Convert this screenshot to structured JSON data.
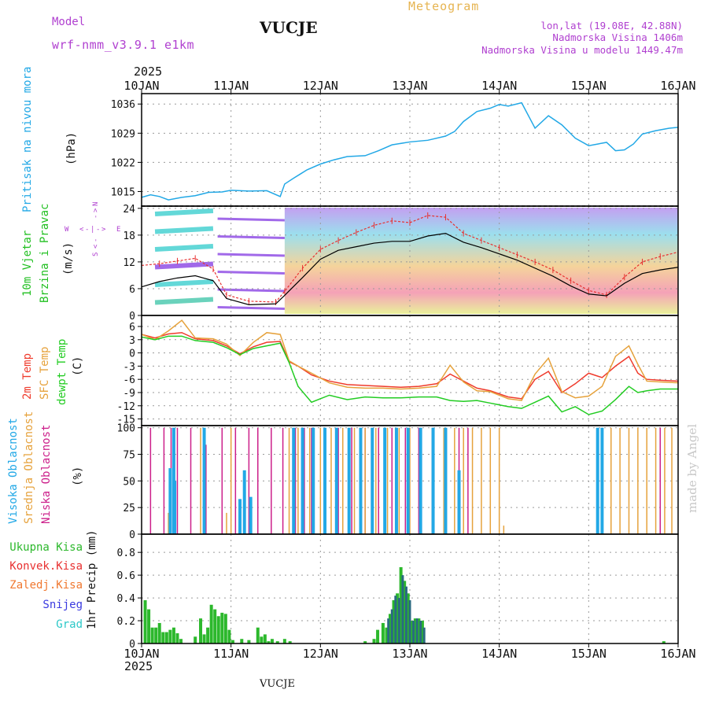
{
  "header": {
    "model_label": "Model",
    "model_name": "wrf-nmm_v3.9.1  e1km",
    "station": "VUCJE",
    "chart_title": "Meteogram",
    "coords": "lon,lat (19.08E, 42.88N)",
    "elevation": "Nadmorska Visina 1406m",
    "model_elevation": "Nadmorska Visina u modelu 1449.47m",
    "year_top": "2025",
    "year_bottom": "2025",
    "footer_station": "VUCJE",
    "watermark": "made by Angel"
  },
  "colors": {
    "pressure": "#22a8e6",
    "wind_label": "#22c022",
    "wind_speed_line": "#000000",
    "gust": "#e83030",
    "temp_2m": "#ef3b2c",
    "temp_sfc": "#e6a23c",
    "temp_dew": "#22cc22",
    "cloud_high": "#22a8e6",
    "cloud_mid": "#e6a23c",
    "cloud_low": "#cc1f8a",
    "precip_total": "#2cb82c",
    "precip_conv": "#e83030",
    "precip_frozen": "#f07830",
    "snow": "#3a3ae0",
    "hail": "#2cc8c8",
    "direction_axis": "#b040d0",
    "header_purple": "#b040d0",
    "title_gold": "#e6b450"
  },
  "chart_data": [
    {
      "id": "pressure",
      "type": "line",
      "ylabel": "(hPa)",
      "side_labels": [
        "Pritisak na nivou mora"
      ],
      "y_ticks": [
        1015,
        1022,
        1029,
        1036
      ],
      "ylim": [
        1011.5,
        1038.5
      ],
      "x": [
        0,
        0.1,
        0.2,
        0.3,
        0.45,
        0.6,
        0.75,
        0.9,
        1.0,
        1.2,
        1.4,
        1.55,
        1.6,
        1.7,
        1.85,
        2.0,
        2.15,
        2.3,
        2.5,
        2.65,
        2.8,
        3.0,
        3.2,
        3.4,
        3.5,
        3.6,
        3.75,
        3.9,
        4.0,
        4.1,
        4.25,
        4.4,
        4.55,
        4.7,
        4.85,
        5.0,
        5.1,
        5.2,
        5.3,
        5.4,
        5.5,
        5.6,
        5.75,
        5.9,
        6.0
      ],
      "series": [
        {
          "values": [
            1013.6,
            1014.2,
            1013.8,
            1013.0,
            1013.6,
            1014.0,
            1014.8,
            1014.9,
            1015.3,
            1015.1,
            1015.2,
            1013.8,
            1016.8,
            1018.2,
            1020.2,
            1021.6,
            1022.6,
            1023.4,
            1023.6,
            1024.8,
            1026.2,
            1026.9,
            1027.3,
            1028.3,
            1029.4,
            1031.8,
            1034.2,
            1035.0,
            1035.9,
            1035.5,
            1036.3,
            1030.2,
            1033.2,
            1031.0,
            1027.8,
            1026.0,
            1026.4,
            1026.8,
            1024.8,
            1025.0,
            1026.4,
            1028.8,
            1029.6,
            1030.2,
            1030.4
          ]
        }
      ]
    },
    {
      "id": "wind",
      "type": "line",
      "ylabel": "(m/s)",
      "side_labels": [
        "10m Vjetar",
        "Brzina i Pravac"
      ],
      "direction_labels": [
        "W",
        "<",
        "-",
        "|",
        "-",
        ">",
        "E",
        "S",
        "<",
        "-",
        "-",
        ">",
        "N"
      ],
      "y_ticks": [
        0,
        6,
        12,
        18,
        24
      ],
      "ylim": [
        0,
        24.5
      ],
      "x": [
        0,
        0.2,
        0.4,
        0.6,
        0.8,
        0.95,
        1.2,
        1.5,
        1.6,
        1.8,
        2.0,
        2.2,
        2.4,
        2.6,
        2.8,
        3.0,
        3.2,
        3.4,
        3.6,
        3.8,
        4.0,
        4.2,
        4.4,
        4.6,
        4.8,
        5.0,
        5.2,
        5.4,
        5.6,
        5.8,
        6.0
      ],
      "series": [
        {
          "name": "speed",
          "values": [
            6.4,
            7.6,
            8.4,
            8.9,
            7.8,
            3.8,
            2.4,
            2.6,
            4.5,
            8.5,
            12.6,
            14.6,
            15.4,
            16.2,
            16.6,
            16.6,
            17.8,
            18.4,
            16.4,
            15.2,
            13.8,
            12.4,
            10.6,
            8.8,
            6.6,
            4.8,
            4.4,
            7.2,
            9.4,
            10.2,
            10.8
          ]
        },
        {
          "name": "gust",
          "values": [
            11.2,
            11.6,
            12.2,
            12.8,
            10.4,
            4.6,
            3.2,
            3.0,
            5.4,
            10.6,
            14.8,
            16.8,
            18.6,
            20.2,
            21.2,
            20.8,
            22.4,
            22.0,
            18.4,
            16.8,
            15.2,
            13.6,
            12.0,
            10.2,
            7.8,
            5.6,
            4.6,
            8.6,
            12.0,
            13.2,
            14.2
          ]
        }
      ]
    },
    {
      "id": "temperature",
      "type": "line",
      "ylabel": "(C)",
      "side_labels": [
        "2m Temp",
        "SFC Temp",
        "dewpt Temp"
      ],
      "y_ticks": [
        -15,
        -12,
        -9,
        -6,
        -3,
        0,
        3,
        6
      ],
      "ylim": [
        -16.5,
        8.5
      ],
      "x": [
        0,
        0.15,
        0.3,
        0.45,
        0.6,
        0.8,
        0.95,
        1.1,
        1.25,
        1.4,
        1.55,
        1.65,
        1.75,
        1.9,
        2.1,
        2.3,
        2.5,
        2.7,
        2.9,
        3.1,
        3.3,
        3.45,
        3.6,
        3.75,
        3.9,
        4.1,
        4.25,
        4.4,
        4.55,
        4.7,
        4.85,
        5.0,
        5.15,
        5.3,
        5.45,
        5.55,
        5.65,
        5.8,
        6.0
      ],
      "series": [
        {
          "name": "2m Temp",
          "values": [
            4.2,
            3.4,
            4.3,
            4.6,
            3.2,
            2.8,
            1.6,
            -0.2,
            1.4,
            2.4,
            2.6,
            -2.0,
            -3.0,
            -5.0,
            -6.4,
            -7.2,
            -7.4,
            -7.6,
            -7.8,
            -7.6,
            -7.0,
            -4.8,
            -6.4,
            -8.0,
            -8.6,
            -10.0,
            -10.4,
            -6.0,
            -4.2,
            -9.0,
            -7.0,
            -4.6,
            -5.6,
            -3.0,
            -0.8,
            -4.6,
            -6.0,
            -6.2,
            -6.4
          ]
        },
        {
          "name": "SFC Temp",
          "values": [
            4.2,
            3.0,
            5.0,
            7.4,
            3.4,
            3.2,
            2.0,
            -0.6,
            2.4,
            4.6,
            4.2,
            -1.8,
            -3.0,
            -4.6,
            -6.8,
            -7.8,
            -8.0,
            -8.0,
            -8.2,
            -8.0,
            -7.6,
            -2.8,
            -6.6,
            -8.6,
            -8.8,
            -10.4,
            -10.8,
            -4.8,
            -1.2,
            -8.8,
            -10.2,
            -9.8,
            -7.6,
            -0.8,
            1.6,
            -2.6,
            -6.4,
            -6.6,
            -6.8
          ]
        },
        {
          "name": "dewpt Temp",
          "values": [
            3.6,
            3.0,
            3.8,
            3.8,
            2.8,
            2.4,
            1.2,
            -0.4,
            1.0,
            1.6,
            2.2,
            -2.2,
            -7.6,
            -11.2,
            -9.6,
            -10.6,
            -10.0,
            -10.2,
            -10.2,
            -10.0,
            -10.0,
            -10.8,
            -11.0,
            -10.8,
            -11.4,
            -12.2,
            -12.6,
            -11.2,
            -9.8,
            -13.4,
            -12.2,
            -14.0,
            -13.2,
            -10.6,
            -7.6,
            -9.0,
            -8.6,
            -8.2,
            -8.2
          ]
        }
      ]
    },
    {
      "id": "clouds",
      "type": "bar",
      "ylabel": "(%)",
      "side_labels": [
        "Visoka Oblacnost",
        "Srednja Oblacnost",
        "Niska Oblacnost"
      ],
      "y_ticks": [
        0,
        25,
        50,
        75,
        100
      ],
      "ylim": [
        0,
        102
      ],
      "series": [
        {
          "name": "low",
          "x": [
            0.1,
            0.25,
            0.33,
            0.4,
            0.55,
            0.72,
            0.9,
            1.05,
            1.2,
            1.3,
            1.45,
            1.58,
            1.72,
            1.82,
            1.9,
            2.05,
            2.2,
            2.35,
            2.5,
            2.65,
            2.8,
            2.95,
            3.1,
            3.25,
            3.4,
            3.55,
            3.65,
            5.1,
            5.8
          ],
          "values": [
            100,
            100,
            100,
            100,
            100,
            84,
            100,
            100,
            100,
            100,
            100,
            100,
            100,
            100,
            100,
            100,
            100,
            100,
            100,
            100,
            100,
            100,
            100,
            100,
            100,
            100,
            100,
            6,
            100
          ]
        },
        {
          "name": "mid",
          "x": [
            0.3,
            0.35,
            0.66,
            0.95,
            1.0,
            1.65,
            1.75,
            1.88,
            2.0,
            2.12,
            2.25,
            2.38,
            2.5,
            2.62,
            2.75,
            2.88,
            3.0,
            3.12,
            3.25,
            3.38,
            3.5,
            3.6,
            3.7,
            3.8,
            3.9,
            4.0,
            4.05,
            5.15,
            5.25,
            5.35,
            5.45,
            5.55,
            5.65,
            5.75,
            5.85,
            5.93
          ],
          "values": [
            20,
            100,
            100,
            20,
            100,
            100,
            100,
            100,
            100,
            100,
            100,
            100,
            100,
            100,
            100,
            100,
            100,
            100,
            100,
            100,
            100,
            100,
            100,
            100,
            100,
            100,
            8,
            100,
            100,
            100,
            100,
            100,
            100,
            100,
            100,
            100
          ]
        },
        {
          "name": "high",
          "x": [
            0.32,
            0.36,
            0.37,
            0.7,
            1.1,
            1.15,
            1.22,
            1.7,
            1.8,
            1.92,
            2.05,
            2.18,
            2.32,
            2.45,
            2.58,
            2.72,
            2.85,
            2.98,
            3.12,
            3.26,
            3.4,
            3.55,
            5.1,
            5.15
          ],
          "values": [
            62,
            100,
            50,
            100,
            33,
            60,
            35,
            100,
            100,
            100,
            100,
            100,
            100,
            100,
            100,
            100,
            100,
            100,
            100,
            100,
            100,
            60,
            100,
            100
          ]
        }
      ]
    },
    {
      "id": "precip",
      "type": "bar",
      "ylabel": "1hr Precip (mm)",
      "side_labels": [
        "Ukupna Kisa",
        "Konvek.Kisa",
        "Zaledj.Kisa",
        "Snijeg",
        "Grad"
      ],
      "y_ticks": [
        0,
        0.2,
        0.4,
        0.6,
        0.8
      ],
      "ylim": [
        0,
        0.96
      ],
      "series": [
        {
          "name": "rain",
          "x": [
            0.04,
            0.08,
            0.12,
            0.16,
            0.2,
            0.24,
            0.28,
            0.32,
            0.36,
            0.4,
            0.44,
            0.6,
            0.66,
            0.7,
            0.74,
            0.78,
            0.82,
            0.86,
            0.9,
            0.94,
            0.98,
            1.02,
            1.12,
            1.2,
            1.3,
            1.34,
            1.38,
            1.42,
            1.46,
            1.52,
            1.6,
            1.66,
            2.5,
            2.6,
            2.64,
            2.7,
            2.74,
            2.78,
            2.82,
            2.86,
            2.9,
            2.94,
            2.98,
            3.02,
            3.06,
            3.1,
            3.14,
            5.84
          ],
          "values": [
            0.38,
            0.3,
            0.14,
            0.14,
            0.18,
            0.1,
            0.1,
            0.12,
            0.14,
            0.09,
            0.04,
            0.06,
            0.22,
            0.08,
            0.14,
            0.34,
            0.3,
            0.24,
            0.27,
            0.26,
            0.12,
            0.03,
            0.04,
            0.03,
            0.14,
            0.06,
            0.08,
            0.02,
            0.04,
            0.02,
            0.04,
            0.02,
            0.02,
            0.04,
            0.12,
            0.18,
            0.14,
            0.26,
            0.38,
            0.44,
            0.67,
            0.55,
            0.44,
            0.2,
            0.22,
            0.22,
            0.2,
            0.02
          ]
        },
        {
          "name": "snow",
          "x": [
            2.76,
            2.8,
            2.84,
            2.88,
            2.92,
            2.96,
            3.0,
            3.04,
            3.08,
            3.12,
            3.16
          ],
          "values": [
            0.22,
            0.3,
            0.42,
            0.4,
            0.6,
            0.5,
            0.38,
            0.2,
            0.22,
            0.2,
            0.14
          ]
        }
      ]
    }
  ],
  "x_axis": {
    "range": [
      0,
      6
    ],
    "tick_labels": [
      "10JAN",
      "11JAN",
      "12JAN",
      "13JAN",
      "14JAN",
      "15JAN",
      "16JAN"
    ]
  }
}
